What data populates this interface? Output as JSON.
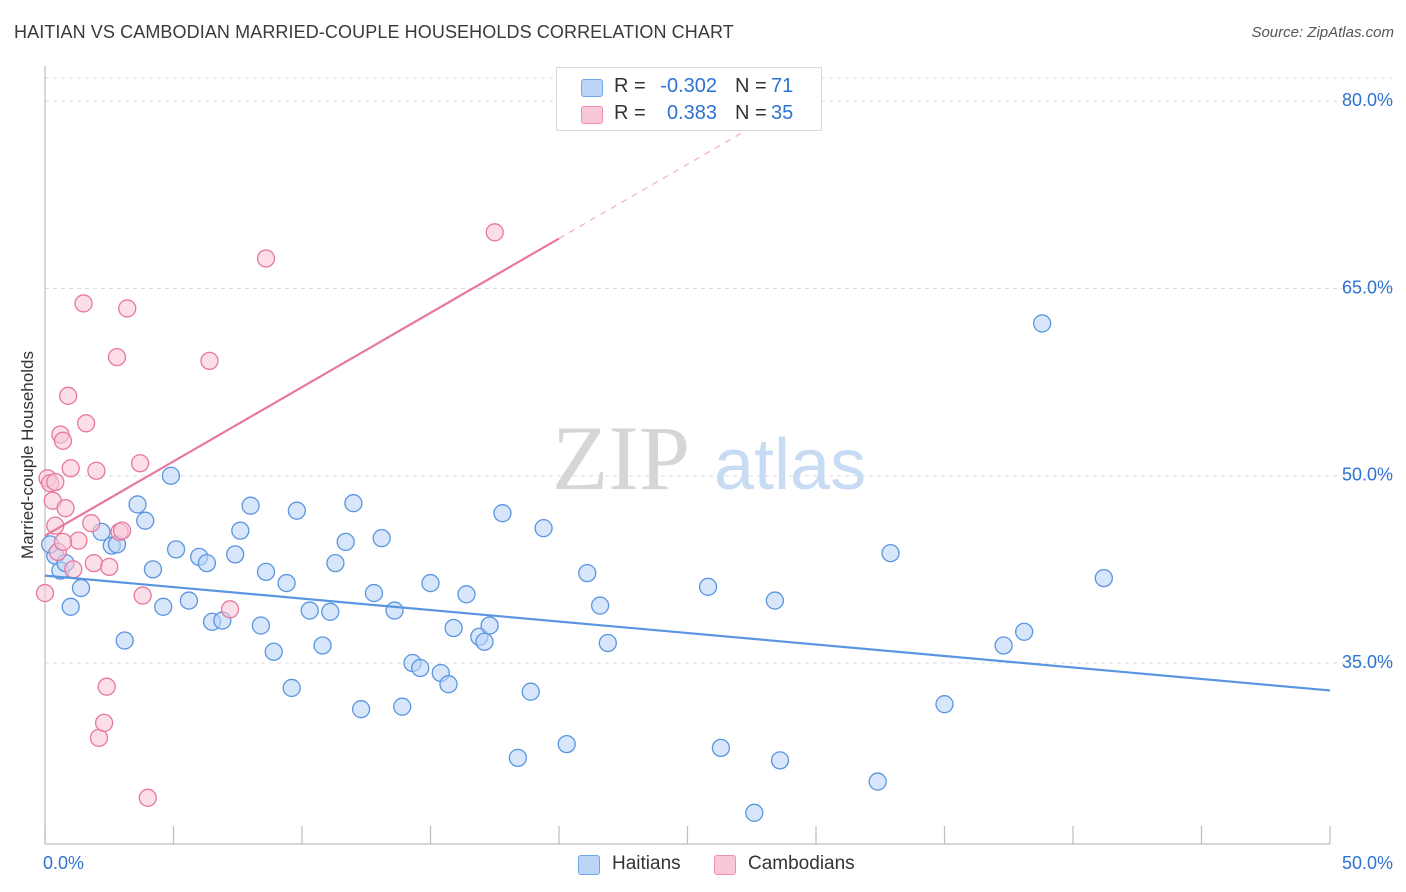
{
  "title": "HAITIAN VS CAMBODIAN MARRIED-COUPLE HOUSEHOLDS CORRELATION CHART",
  "source": "Source: ZipAtlas.com",
  "watermark": {
    "zip": "ZIP",
    "atlas": "atlas"
  },
  "legend_top": {
    "rows": [
      {
        "r_label": "R =",
        "r_value": "-0.302",
        "n_label": "N =",
        "n_value": "71",
        "color": "#6fa6ea",
        "fill": "#bcd5f6"
      },
      {
        "r_label": "R =",
        "r_value": "0.383",
        "n_label": "N =",
        "n_value": "35",
        "color": "#ef8fae",
        "fill": "#f8c8d7"
      }
    ]
  },
  "legend_bottom": {
    "items": [
      {
        "label": "Haitians",
        "color": "#6fa6ea",
        "fill": "#bcd5f6"
      },
      {
        "label": "Cambodians",
        "color": "#ef8fae",
        "fill": "#f8c8d7"
      }
    ]
  },
  "chart_data": {
    "type": "scatter",
    "title": "HAITIAN VS CAMBODIAN MARRIED-COUPLE HOUSEHOLDS CORRELATION CHART",
    "xlabel": "",
    "ylabel": "Married-couple Households",
    "xlim": [
      0,
      50
    ],
    "ylim": [
      20.5,
      82.5
    ],
    "x_tick_labels": [
      "0.0%",
      "50.0%"
    ],
    "y_ticks": [
      35,
      50,
      65,
      80
    ],
    "y_tick_labels": [
      "35.0%",
      "50.0%",
      "65.0%",
      "80.0%"
    ],
    "grid": true,
    "legend_position": "bottom",
    "series": [
      {
        "name": "Haitians",
        "color": "#5a96e0",
        "fill": "#bcd5f6",
        "trend": {
          "x": [
            0,
            50
          ],
          "y": [
            42.0,
            32.8
          ],
          "dashed_to": null
        },
        "points": [
          [
            0.4,
            43.6
          ],
          [
            0.6,
            42.4
          ],
          [
            0.8,
            43.0
          ],
          [
            1.0,
            39.5
          ],
          [
            1.4,
            41.0
          ],
          [
            2.2,
            45.5
          ],
          [
            2.6,
            44.4
          ],
          [
            2.8,
            44.5
          ],
          [
            3.1,
            36.8
          ],
          [
            3.6,
            47.7
          ],
          [
            3.9,
            46.4
          ],
          [
            4.2,
            42.5
          ],
          [
            4.6,
            39.5
          ],
          [
            4.9,
            50.0
          ],
          [
            5.1,
            44.1
          ],
          [
            5.6,
            40.0
          ],
          [
            6.0,
            43.5
          ],
          [
            6.3,
            43.0
          ],
          [
            6.5,
            38.3
          ],
          [
            6.9,
            38.4
          ],
          [
            7.4,
            43.7
          ],
          [
            7.6,
            45.6
          ],
          [
            8.0,
            47.6
          ],
          [
            8.4,
            38.0
          ],
          [
            8.6,
            42.3
          ],
          [
            8.9,
            35.9
          ],
          [
            9.4,
            41.4
          ],
          [
            9.6,
            33.0
          ],
          [
            9.8,
            47.2
          ],
          [
            10.3,
            39.2
          ],
          [
            10.8,
            36.4
          ],
          [
            11.1,
            39.1
          ],
          [
            11.3,
            43.0
          ],
          [
            11.7,
            44.7
          ],
          [
            12.0,
            47.8
          ],
          [
            12.3,
            31.3
          ],
          [
            12.8,
            40.6
          ],
          [
            13.1,
            45.0
          ],
          [
            13.6,
            39.2
          ],
          [
            13.9,
            31.5
          ],
          [
            14.3,
            35.0
          ],
          [
            14.6,
            34.6
          ],
          [
            15.0,
            41.4
          ],
          [
            15.4,
            34.2
          ],
          [
            15.7,
            33.3
          ],
          [
            15.9,
            37.8
          ],
          [
            16.4,
            40.5
          ],
          [
            16.9,
            37.1
          ],
          [
            17.1,
            36.7
          ],
          [
            17.3,
            38.0
          ],
          [
            17.8,
            47.0
          ],
          [
            18.4,
            27.4
          ],
          [
            18.9,
            32.7
          ],
          [
            19.4,
            45.8
          ],
          [
            20.3,
            28.5
          ],
          [
            21.1,
            42.2
          ],
          [
            21.6,
            39.6
          ],
          [
            21.9,
            36.6
          ],
          [
            25.8,
            41.1
          ],
          [
            26.3,
            28.2
          ],
          [
            27.6,
            23.0
          ],
          [
            28.4,
            40.0
          ],
          [
            28.6,
            27.2
          ],
          [
            32.4,
            25.5
          ],
          [
            32.9,
            43.8
          ],
          [
            35.0,
            31.7
          ],
          [
            37.3,
            36.4
          ],
          [
            38.1,
            37.5
          ],
          [
            38.8,
            62.2
          ],
          [
            41.2,
            41.8
          ],
          [
            0.2,
            44.5
          ]
        ]
      },
      {
        "name": "Cambodians",
        "color": "#e8789c",
        "fill": "#f8c8d7",
        "trend": {
          "x": [
            0,
            20
          ],
          "y": [
            45.2,
            69.0
          ],
          "dashed_x": [
            20,
            30
          ],
          "dashed_y": [
            69.0,
            80.9
          ]
        },
        "points": [
          [
            0.0,
            40.6
          ],
          [
            0.1,
            49.8
          ],
          [
            0.2,
            49.4
          ],
          [
            0.3,
            48.0
          ],
          [
            0.4,
            46.0
          ],
          [
            0.5,
            43.9
          ],
          [
            0.6,
            53.3
          ],
          [
            0.7,
            52.8
          ],
          [
            0.8,
            47.4
          ],
          [
            0.9,
            56.4
          ],
          [
            1.0,
            50.6
          ],
          [
            1.1,
            42.5
          ],
          [
            1.3,
            44.8
          ],
          [
            1.5,
            63.8
          ],
          [
            1.6,
            54.2
          ],
          [
            1.8,
            46.2
          ],
          [
            1.9,
            43.0
          ],
          [
            2.0,
            50.4
          ],
          [
            2.1,
            29.0
          ],
          [
            2.3,
            30.2
          ],
          [
            2.4,
            33.1
          ],
          [
            2.5,
            42.7
          ],
          [
            2.8,
            59.5
          ],
          [
            2.9,
            45.5
          ],
          [
            3.0,
            45.6
          ],
          [
            3.2,
            63.4
          ],
          [
            3.7,
            51.0
          ],
          [
            3.8,
            40.4
          ],
          [
            4.0,
            24.2
          ],
          [
            6.4,
            59.2
          ],
          [
            7.2,
            39.3
          ],
          [
            8.6,
            67.4
          ],
          [
            17.5,
            69.5
          ],
          [
            0.7,
            44.7
          ],
          [
            0.4,
            49.5
          ]
        ]
      }
    ]
  }
}
